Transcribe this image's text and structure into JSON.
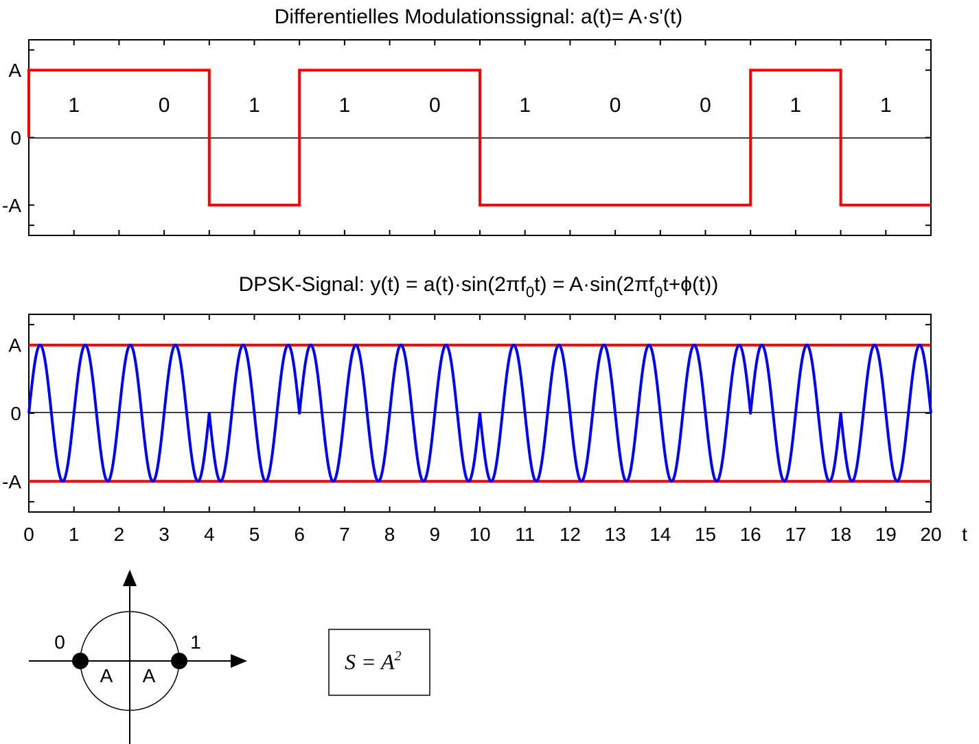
{
  "chart_data": [
    {
      "type": "line",
      "title_parts": [
        "Differentielles Modulationssignal:  a(t)= A·s'(t)"
      ],
      "y_tick_labels": [
        "A",
        "0",
        "-A"
      ],
      "xlim": [
        0,
        20
      ],
      "ylim": [
        -1.45,
        1.45
      ],
      "bits": [
        "1",
        "0",
        "1",
        "1",
        "0",
        "1",
        "0",
        "0",
        "1",
        "1"
      ],
      "series": [
        {
          "color": "#ff0000",
          "step_x": [
            0,
            4,
            6,
            10,
            16,
            18,
            20
          ],
          "step_y": [
            1,
            -1,
            1,
            -1,
            1,
            -1
          ]
        }
      ]
    },
    {
      "type": "line",
      "title_parts": [
        "DPSK-Signal:  y(t) = a(t)·sin(2πf",
        "0",
        "t) = A·sin(2πf",
        "0",
        "t+ϕ(t))"
      ],
      "y_tick_labels": [
        "A",
        "0",
        "-A"
      ],
      "x_tick_labels": [
        "0",
        "1",
        "2",
        "3",
        "4",
        "5",
        "6",
        "7",
        "8",
        "9",
        "10",
        "11",
        "12",
        "13",
        "14",
        "15",
        "16",
        "17",
        "18",
        "19",
        "20"
      ],
      "x_axis_label": "t",
      "xlim": [
        0,
        20
      ],
      "ylim": [
        -1.45,
        1.45
      ],
      "carrier_cycles_per_unit": 1,
      "envelope_levels": [
        1,
        -1
      ],
      "colors": {
        "signal": "#0000ff",
        "envelope": "#ff0000"
      }
    }
  ],
  "constellation": {
    "points": [
      {
        "label": "0",
        "x": -1,
        "y": 0
      },
      {
        "label": "1",
        "x": 1,
        "y": 0
      }
    ],
    "radius_labels": [
      "A",
      "A"
    ]
  },
  "formula": {
    "base": "S = A",
    "exponent": "2"
  }
}
